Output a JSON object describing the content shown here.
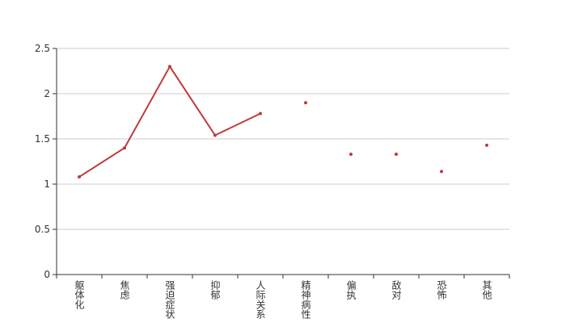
{
  "chart_data": {
    "type": "line",
    "categories": [
      "躯体化",
      "焦虑",
      "强迫症状",
      "抑郁",
      "人际关系",
      "精神病性",
      "偏执",
      "敌对",
      "恐怖",
      "其他"
    ],
    "series": [
      {
        "color": "#c0393b",
        "values": [
          1.08,
          1.4,
          2.3,
          1.54,
          1.78,
          1.9,
          1.33,
          1.33,
          1.14,
          1.43
        ]
      }
    ],
    "ylim": [
      0,
      2.5
    ],
    "yticks": [
      0,
      0.5,
      1,
      1.5,
      2,
      2.5
    ],
    "grid": true
  }
}
